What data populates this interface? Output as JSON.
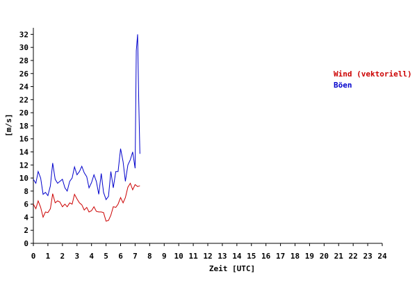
{
  "chart_data": {
    "type": "line",
    "title": "",
    "xlabel": "Zeit [UTC]",
    "ylabel": "[m/s]",
    "xlim": [
      0,
      24
    ],
    "ylim": [
      0,
      33
    ],
    "x_ticks": [
      "0",
      "1",
      "2",
      "3",
      "4",
      "5",
      "6",
      "7",
      "8",
      "9",
      "10",
      "11",
      "12",
      "13",
      "14",
      "15",
      "16",
      "17",
      "18",
      "19",
      "20",
      "21",
      "22",
      "23",
      "24"
    ],
    "y_ticks": [
      "0",
      "2",
      "4",
      "6",
      "8",
      "10",
      "12",
      "14",
      "16",
      "18",
      "20",
      "22",
      "24",
      "26",
      "28",
      "30",
      "32"
    ],
    "grid": false,
    "legend_position": "right",
    "series": [
      {
        "name": "Wind (vektoriell)",
        "color": "#cc0000",
        "x": [
          0.0,
          0.17,
          0.33,
          0.5,
          0.67,
          0.83,
          1.0,
          1.17,
          1.33,
          1.5,
          1.67,
          1.83,
          2.0,
          2.17,
          2.33,
          2.5,
          2.67,
          2.83,
          3.0,
          3.17,
          3.33,
          3.5,
          3.67,
          3.83,
          4.0,
          4.17,
          4.33,
          4.5,
          4.67,
          4.83,
          5.0,
          5.17,
          5.33,
          5.5,
          5.67,
          5.83,
          6.0,
          6.17,
          6.33,
          6.5,
          6.67,
          6.83,
          7.0,
          7.17,
          7.33
        ],
        "values": [
          6.0,
          5.3,
          6.5,
          5.5,
          4.0,
          4.8,
          4.7,
          5.3,
          7.6,
          6.2,
          6.5,
          6.3,
          5.6,
          6.0,
          5.6,
          6.2,
          6.0,
          7.5,
          6.8,
          6.2,
          5.9,
          5.1,
          5.5,
          4.8,
          5.0,
          5.6,
          4.9,
          4.8,
          4.8,
          4.7,
          3.4,
          3.5,
          4.3,
          5.6,
          5.5,
          6.0,
          7.0,
          6.2,
          7.0,
          8.6,
          9.2,
          8.2,
          9.0,
          8.7,
          8.8
        ]
      },
      {
        "name": "Böen",
        "color": "#0000cc",
        "x": [
          0.0,
          0.17,
          0.33,
          0.5,
          0.67,
          0.83,
          1.0,
          1.17,
          1.33,
          1.5,
          1.67,
          1.83,
          2.0,
          2.17,
          2.33,
          2.5,
          2.67,
          2.83,
          3.0,
          3.17,
          3.33,
          3.5,
          3.67,
          3.83,
          4.0,
          4.17,
          4.33,
          4.5,
          4.67,
          4.83,
          5.0,
          5.17,
          5.33,
          5.5,
          5.67,
          5.83,
          6.0,
          6.17,
          6.33,
          6.5,
          6.67,
          6.83,
          7.0,
          7.08,
          7.17,
          7.25,
          7.33
        ],
        "values": [
          9.8,
          9.2,
          11.0,
          10.0,
          7.5,
          7.8,
          7.3,
          8.8,
          12.3,
          9.8,
          9.2,
          9.5,
          9.8,
          8.5,
          8.0,
          9.5,
          10.0,
          11.7,
          10.5,
          11.0,
          11.8,
          10.8,
          10.2,
          8.5,
          9.3,
          10.5,
          9.5,
          7.5,
          10.7,
          7.8,
          6.7,
          7.2,
          11.0,
          8.5,
          11.0,
          11.0,
          14.5,
          12.5,
          9.5,
          12.0,
          12.8,
          14.0,
          11.5,
          29.5,
          32.0,
          22.0,
          13.7
        ]
      }
    ]
  }
}
